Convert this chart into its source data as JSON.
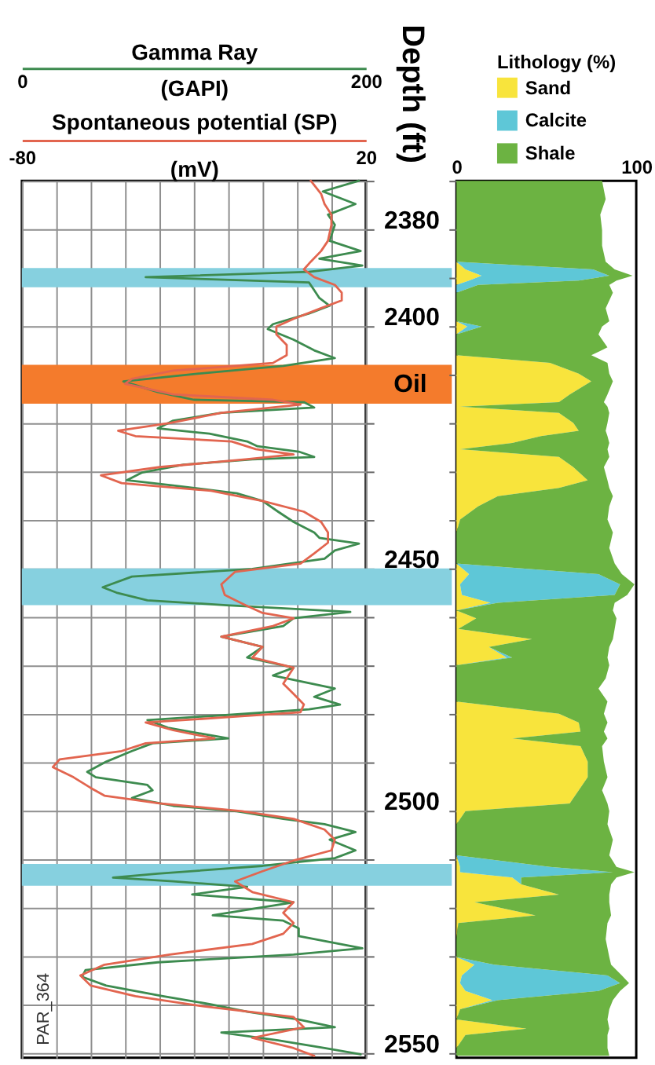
{
  "chart_data": [
    {
      "type": "line",
      "orientation": "horizontal",
      "xlabel": "Gamma Ray\n(GAPI)",
      "x2label": "Spontaneous potential (SP)\n(mV)",
      "ylabel": "Depth (ft)",
      "xlim": [
        0,
        200
      ],
      "xticks": [
        0,
        {
          "value": 20,
          "label": null
        },
        {
          "value": 40,
          "label": null
        },
        {
          "value": 60,
          "label": null
        },
        {
          "value": 80,
          "label": null
        },
        {
          "value": 100,
          "label": null
        },
        {
          "value": 120,
          "label": null
        },
        {
          "value": 140,
          "label": null
        },
        {
          "value": 160,
          "label": null
        },
        {
          "value": 180,
          "label": null
        },
        200
      ],
      "x2lim": [
        -80,
        20
      ],
      "x2ticks": [
        -80,
        20
      ],
      "ylim": [
        2551,
        2370
      ],
      "yticks": [
        {
          "value": 2370,
          "label": null
        },
        2380,
        {
          "value": 2390,
          "label": null
        },
        2400,
        {
          "value": 2410,
          "label": null
        },
        {
          "value": 2420,
          "label": null
        },
        {
          "value": 2430,
          "label": null
        },
        {
          "value": 2440,
          "label": null
        },
        2450,
        {
          "value": 2460,
          "label": null
        },
        {
          "value": 2470,
          "label": null
        },
        {
          "value": 2480,
          "label": null
        },
        {
          "value": 2490,
          "label": null
        },
        2500,
        {
          "value": 2510,
          "label": null
        },
        {
          "value": 2520,
          "label": null
        },
        {
          "value": 2530,
          "label": null
        },
        {
          "value": 2540,
          "label": null
        },
        2550
      ],
      "grid": true,
      "bands": [
        {
          "axis": "y",
          "from": 2388,
          "to": 2392,
          "color": "#86d0df"
        },
        {
          "axis": "y",
          "from": 2408,
          "to": 2416,
          "color": "#f47b2c",
          "label": "Oil"
        },
        {
          "axis": "y",
          "from": 2450,
          "to": 2457.6,
          "color": "#86d0df"
        },
        {
          "axis": "y",
          "from": 2511,
          "to": 2515.5,
          "color": "#86d0df"
        }
      ],
      "annotations": [
        "PAR_364"
      ],
      "series": [
        {
          "color": "#3d8b4f",
          "x": [
            2370.0,
            2372.2,
            2374.8,
            2377.0,
            2379.1,
            2382.4,
            2384.5,
            2386.1,
            2387.5,
            2388.8,
            2389.9,
            2391.0,
            2392.6,
            2394.2,
            2395.8,
            2397.4,
            2399.6,
            2400.6,
            2402.8,
            2405.0,
            2406.6,
            2408.2,
            2409.8,
            2411.4,
            2413.6,
            2415.2,
            2415.7,
            2416.8,
            2417.9,
            2419.5,
            2421.1,
            2422.2,
            2423.8,
            2424.8,
            2425.9,
            2427.0,
            2427.5,
            2428.6,
            2430.2,
            2431.8,
            2432.9,
            2434.5,
            2436.1,
            2438.3,
            2440.4,
            2442.6,
            2443.7,
            2444.9,
            2446.3,
            2448.0,
            2450.1,
            2451.7,
            2453.9,
            2455.0,
            2456.6,
            2457.6,
            2459.0,
            2460.3,
            2461.9,
            2464.1,
            2466.2,
            2468.4,
            2470.5,
            2472.1,
            2474.8,
            2476.5,
            2478.1,
            2479.1,
            2480.2,
            2481.3,
            2482.9,
            2485.1,
            2486.1,
            2487.7,
            2489.9,
            2492.0,
            2493.1,
            2494.7,
            2495.8,
            2497.4,
            2499.0,
            2500.1,
            2501.7,
            2502.8,
            2504.4,
            2506.0,
            2508.2,
            2509.8,
            2511.4,
            2513.0,
            2513.8,
            2514.6,
            2515.7,
            2517.3,
            2518.9,
            2521.6,
            2522.7,
            2524.3,
            2525.9,
            2528.4,
            2529.7,
            2531.3,
            2532.9,
            2534.3,
            2536.1,
            2538.3,
            2539.9,
            2541.5,
            2543.1,
            2544.7,
            2545.8,
            2547.4,
            2549.0,
            2550.3
          ],
          "values": [
            196,
            175,
            194,
            178,
            182,
            179,
            197,
            173,
            198,
            167,
            72,
            167,
            170,
            173,
            179,
            167,
            146,
            143,
            158,
            170,
            182,
            152,
            103,
            59,
            79,
            100,
            164,
            170,
            116,
            88,
            79,
            109,
            131,
            137,
            161,
            170,
            134,
            94,
            70,
            61,
            88,
            125,
            140,
            149,
            158,
            170,
            173,
            196,
            182,
            176,
            134,
            64,
            47,
            55,
            73,
            119,
            191,
            158,
            152,
            116,
            140,
            131,
            158,
            146,
            182,
            170,
            185,
            167,
            122,
            73,
            85,
            120,
            76,
            64,
            49,
            38,
            43,
            73,
            76,
            64,
            88,
            125,
            152,
            176,
            194,
            179,
            194,
            182,
            140,
            79,
            53,
            88,
            131,
            99,
            158,
            111,
            152,
            161,
            161,
            198,
            158,
            79,
            37,
            35,
            49,
            82,
            109,
            131,
            161,
            182,
            116,
            149,
            176,
            197
          ]
        },
        {
          "color": "#e2654f",
          "axis": "x2",
          "x": [
            2370.0,
            2372.7,
            2374.8,
            2377.0,
            2379.1,
            2382.4,
            2384.5,
            2386.7,
            2388.3,
            2389.9,
            2391.5,
            2393.1,
            2394.7,
            2396.3,
            2398.5,
            2400.1,
            2401.7,
            2403.9,
            2406.0,
            2407.6,
            2409.2,
            2410.9,
            2411.9,
            2414.1,
            2415.2,
            2416.2,
            2417.9,
            2420.0,
            2421.6,
            2422.7,
            2423.8,
            2425.4,
            2426.5,
            2427.5,
            2429.1,
            2430.8,
            2432.4,
            2434.0,
            2436.1,
            2438.3,
            2440.4,
            2442.6,
            2444.7,
            2446.9,
            2449.0,
            2450.7,
            2453.3,
            2455.5,
            2457.6,
            2459.2,
            2460.3,
            2461.9,
            2464.1,
            2466.2,
            2468.4,
            2470.5,
            2473.8,
            2475.9,
            2478.1,
            2479.7,
            2480.8,
            2481.8,
            2483.4,
            2485.1,
            2486.1,
            2487.7,
            2489.4,
            2491.0,
            2493.1,
            2495.3,
            2496.9,
            2498.5,
            2500.1,
            2501.7,
            2503.9,
            2506.0,
            2508.2,
            2510.3,
            2512.5,
            2514.6,
            2516.8,
            2518.9,
            2521.1,
            2523.2,
            2525.4,
            2527.5,
            2529.7,
            2531.8,
            2534.0,
            2536.1,
            2538.3,
            2540.4,
            2542.6,
            2544.7,
            2546.9,
            2549.0,
            2550.6
          ],
          "values": [
            4,
            7,
            8,
            10,
            10,
            9,
            7,
            4,
            2,
            5,
            11,
            13,
            13,
            7,
            -1,
            -6,
            -6,
            -3,
            -3,
            -7,
            -36,
            -48,
            -50,
            -36,
            -7,
            1,
            -22,
            -37,
            -52,
            -47,
            -19,
            -12,
            -1,
            -15,
            -40,
            -57,
            -51,
            -25,
            -10,
            2,
            7,
            9,
            9,
            5,
            1,
            -18,
            -22,
            -21,
            -15,
            -10,
            -1,
            -7,
            -22,
            -10,
            -13,
            -1,
            -4,
            -1,
            2,
            1,
            -22,
            -44,
            -36,
            -24,
            -44,
            -51,
            -69,
            -71,
            -65,
            -60,
            -56,
            -40,
            -16,
            -1,
            8,
            11,
            10,
            -1,
            -10,
            -18,
            -13,
            -1,
            -4,
            -1,
            -4,
            -13,
            -37,
            -56,
            -63,
            -60,
            -47,
            -27,
            -1,
            2,
            -13,
            -1,
            5
          ]
        }
      ]
    },
    {
      "type": "area",
      "stacked": true,
      "orientation": "horizontal",
      "legend_title": "Lithology (%)",
      "legend": "top",
      "xlim": [
        0,
        100
      ],
      "xticks": [
        0,
        100
      ],
      "ylim": [
        2551,
        2370
      ],
      "yticks": [
        2370,
        2380,
        2390,
        2400,
        2410,
        2420,
        2430,
        2440,
        2450,
        2460,
        2470,
        2480,
        2490,
        2500,
        2510,
        2520,
        2530,
        2540,
        2550
      ],
      "tick_labels": "x",
      "x": [
        2370.0,
        2373.8,
        2377.0,
        2380.2,
        2383.4,
        2386.7,
        2388.3,
        2389.6,
        2390.6,
        2391.5,
        2393.1,
        2396.3,
        2399.0,
        2400.1,
        2401.7,
        2404.4,
        2406.0,
        2407.6,
        2409.8,
        2411.4,
        2414.1,
        2415.7,
        2416.6,
        2417.9,
        2420.0,
        2421.6,
        2422.7,
        2424.1,
        2425.4,
        2427.0,
        2429.1,
        2431.8,
        2433.4,
        2435.1,
        2437.2,
        2439.9,
        2442.6,
        2445.8,
        2449.0,
        2451.2,
        2453.3,
        2455.5,
        2457.1,
        2458.7,
        2460.3,
        2462.5,
        2464.6,
        2466.2,
        2468.4,
        2470.0,
        2472.7,
        2474.8,
        2477.5,
        2480.0,
        2481.8,
        2483.7,
        2485.1,
        2486.7,
        2489.9,
        2493.1,
        2495.8,
        2498.5,
        2500.1,
        2502.8,
        2506.0,
        2509.2,
        2511.6,
        2512.7,
        2513.8,
        2515.2,
        2517.3,
        2518.9,
        2521.6,
        2523.2,
        2526.5,
        2530.2,
        2531.8,
        2534.0,
        2535.6,
        2537.2,
        2539.1,
        2541.0,
        2543.1,
        2545.0,
        2546.3,
        2549.0,
        2550.6
      ],
      "series": [
        {
          "name": "Sand",
          "color": "#f8e43c",
          "values": [
            0,
            0,
            0,
            0,
            0,
            0,
            5,
            14,
            7,
            0,
            0,
            0,
            0,
            6,
            0,
            0,
            0,
            52,
            68,
            75,
            63,
            57,
            2,
            57,
            65,
            68,
            47,
            31,
            2,
            57,
            65,
            73,
            57,
            23,
            12,
            2,
            0,
            0,
            0,
            7,
            2,
            3,
            19,
            0,
            11,
            1,
            42,
            18,
            28,
            0,
            0,
            0,
            0,
            57,
            68,
            69,
            31,
            69,
            73,
            73,
            68,
            63,
            5,
            0,
            0,
            0,
            2,
            2,
            31,
            36,
            57,
            10,
            44,
            1,
            0,
            0,
            10,
            3,
            2,
            5,
            20,
            2,
            0,
            39,
            5,
            0,
            0
          ]
        },
        {
          "name": "Calcite",
          "color": "#5ec7d7",
          "values": [
            0,
            0,
            0,
            0,
            0,
            0,
            71,
            71,
            61,
            12,
            0,
            0,
            0,
            8,
            0,
            0,
            0,
            0,
            0,
            0,
            0,
            0,
            0,
            0,
            0,
            0,
            0,
            0,
            0,
            0,
            0,
            0,
            0,
            0,
            0,
            0,
            0,
            0,
            0,
            72,
            89,
            85,
            4,
            0,
            0,
            0,
            0,
            0,
            3,
            0,
            0,
            0,
            0,
            0,
            0,
            0,
            0,
            0,
            0,
            0,
            0,
            0,
            0,
            0,
            0,
            0,
            50,
            85,
            5,
            0,
            0,
            0,
            0,
            0,
            0,
            0,
            11,
            81,
            89,
            74,
            3,
            0,
            0,
            0,
            0,
            0,
            0
          ]
        },
        {
          "name": "Shale",
          "color": "#6cb342",
          "values": [
            81,
            83,
            80,
            81,
            81,
            83,
            12,
            13,
            21,
            73,
            87,
            83,
            85,
            67,
            79,
            84,
            75,
            32,
            17,
            12,
            21,
            25,
            82,
            28,
            19,
            15,
            37,
            54,
            82,
            28,
            17,
            11,
            28,
            64,
            73,
            82,
            87,
            85,
            88,
            13,
            8,
            7,
            65,
            87,
            78,
            87,
            45,
            67,
            53,
            85,
            83,
            79,
            84,
            25,
            16,
            13,
            53,
            12,
            9,
            11,
            13,
            21,
            80,
            84,
            87,
            85,
            37,
            12,
            53,
            50,
            28,
            75,
            42,
            83,
            83,
            85,
            65,
            8,
            5,
            12,
            64,
            83,
            84,
            46,
            79,
            84,
            85
          ]
        }
      ]
    }
  ]
}
